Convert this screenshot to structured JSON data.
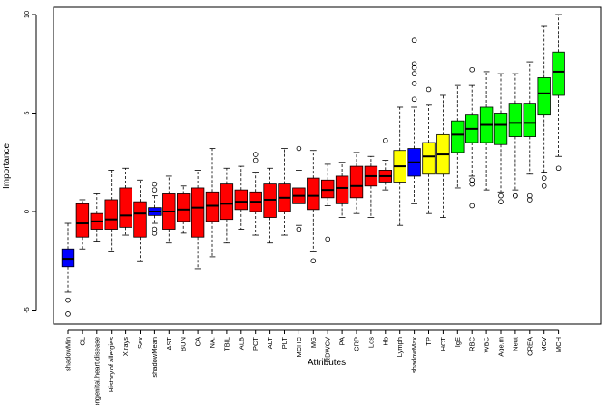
{
  "chart_data": {
    "type": "boxplot",
    "xlabel": "Attributes",
    "ylabel": "Importance",
    "ylim": [
      -5.5,
      10.3
    ],
    "yticks": [
      -5,
      0,
      5,
      10
    ],
    "colors": {
      "shadow": "#0000ff",
      "rejected": "#ff0000",
      "tentative": "#ffff00",
      "confirmed": "#00ff00"
    },
    "boxes": [
      {
        "name": "shadowMin",
        "status": "shadow",
        "whisker_low": -4.1,
        "q1": -2.8,
        "median": -2.4,
        "q3": -1.9,
        "whisker_high": -0.6,
        "outliers": [
          -4.5,
          -5.2
        ]
      },
      {
        "name": "CL",
        "status": "rejected",
        "whisker_low": -1.9,
        "q1": -1.3,
        "median": -0.6,
        "q3": 0.4,
        "whisker_high": 0.6,
        "outliers": []
      },
      {
        "name": "Congenital.heart.disease",
        "status": "rejected",
        "whisker_low": -1.5,
        "q1": -0.9,
        "median": -0.5,
        "q3": -0.1,
        "whisker_high": 0.9,
        "outliers": []
      },
      {
        "name": "History.of.allergies",
        "status": "rejected",
        "whisker_low": -2.0,
        "q1": -0.9,
        "median": -0.4,
        "q3": 0.6,
        "whisker_high": 2.1,
        "outliers": []
      },
      {
        "name": "X.rays",
        "status": "rejected",
        "whisker_low": -1.2,
        "q1": -0.8,
        "median": -0.2,
        "q3": 1.2,
        "whisker_high": 2.2,
        "outliers": []
      },
      {
        "name": "Sex",
        "status": "rejected",
        "whisker_low": -2.5,
        "q1": -1.3,
        "median": -0.1,
        "q3": 0.5,
        "whisker_high": 1.6,
        "outliers": []
      },
      {
        "name": "shadowMean",
        "status": "shadow",
        "whisker_low": -0.6,
        "q1": -0.2,
        "median": 0.0,
        "q3": 0.2,
        "whisker_high": 0.8,
        "outliers": [
          1.4,
          1.1,
          -0.9,
          -1.1
        ]
      },
      {
        "name": "AST",
        "status": "rejected",
        "whisker_low": -1.6,
        "q1": -0.9,
        "median": 0.0,
        "q3": 0.9,
        "whisker_high": 1.8,
        "outliers": []
      },
      {
        "name": "BUN",
        "status": "rejected",
        "whisker_low": -1.1,
        "q1": -0.5,
        "median": 0.1,
        "q3": 0.9,
        "whisker_high": 1.3,
        "outliers": []
      },
      {
        "name": "CA",
        "status": "rejected",
        "whisker_low": -2.9,
        "q1": -1.3,
        "median": 0.2,
        "q3": 1.2,
        "whisker_high": 2.1,
        "outliers": []
      },
      {
        "name": "NA.",
        "status": "rejected",
        "whisker_low": -2.3,
        "q1": -0.5,
        "median": 0.3,
        "q3": 1.0,
        "whisker_high": 3.2,
        "outliers": []
      },
      {
        "name": "TBIL",
        "status": "rejected",
        "whisker_low": -1.6,
        "q1": -0.4,
        "median": 0.4,
        "q3": 1.4,
        "whisker_high": 2.2,
        "outliers": []
      },
      {
        "name": "ALB",
        "status": "rejected",
        "whisker_low": -0.9,
        "q1": 0.1,
        "median": 0.5,
        "q3": 1.1,
        "whisker_high": 2.3,
        "outliers": []
      },
      {
        "name": "PCT",
        "status": "rejected",
        "whisker_low": -1.2,
        "q1": 0.0,
        "median": 0.5,
        "q3": 1.0,
        "whisker_high": 2.0,
        "outliers": [
          2.9,
          2.6
        ]
      },
      {
        "name": "ALT",
        "status": "rejected",
        "whisker_low": -1.6,
        "q1": -0.3,
        "median": 0.6,
        "q3": 1.4,
        "whisker_high": 2.2,
        "outliers": []
      },
      {
        "name": "PLT",
        "status": "rejected",
        "whisker_low": -1.2,
        "q1": 0.0,
        "median": 0.7,
        "q3": 1.4,
        "whisker_high": 3.2,
        "outliers": []
      },
      {
        "name": "MCHC",
        "status": "rejected",
        "whisker_low": -0.7,
        "q1": 0.4,
        "median": 0.8,
        "q3": 1.2,
        "whisker_high": 2.1,
        "outliers": [
          3.2,
          -0.9
        ]
      },
      {
        "name": "MG",
        "status": "rejected",
        "whisker_low": -2.0,
        "q1": 0.1,
        "median": 0.8,
        "q3": 1.7,
        "whisker_high": 3.1,
        "outliers": [
          -2.5
        ]
      },
      {
        "name": "RDWCV",
        "status": "rejected",
        "whisker_low": 0.3,
        "q1": 0.7,
        "median": 1.1,
        "q3": 1.6,
        "whisker_high": 2.4,
        "outliers": [
          -1.4
        ]
      },
      {
        "name": "PA",
        "status": "rejected",
        "whisker_low": -0.3,
        "q1": 0.4,
        "median": 1.2,
        "q3": 1.8,
        "whisker_high": 2.5,
        "outliers": []
      },
      {
        "name": "CRP",
        "status": "rejected",
        "whisker_low": -0.1,
        "q1": 0.7,
        "median": 1.3,
        "q3": 2.3,
        "whisker_high": 3.0,
        "outliers": []
      },
      {
        "name": "Los",
        "status": "rejected",
        "whisker_low": -0.3,
        "q1": 1.3,
        "median": 1.8,
        "q3": 2.3,
        "whisker_high": 2.8,
        "outliers": []
      },
      {
        "name": "Hb",
        "status": "rejected",
        "whisker_low": 1.1,
        "q1": 1.5,
        "median": 1.8,
        "q3": 2.1,
        "whisker_high": 2.6,
        "outliers": [
          3.6
        ]
      },
      {
        "name": "Lymph",
        "status": "tentative",
        "whisker_low": -0.7,
        "q1": 1.5,
        "median": 2.3,
        "q3": 3.1,
        "whisker_high": 5.3,
        "outliers": []
      },
      {
        "name": "shadowMax",
        "status": "shadow",
        "whisker_low": 0.4,
        "q1": 1.8,
        "median": 2.5,
        "q3": 3.2,
        "whisker_high": 5.3,
        "outliers": [
          8.7,
          7.5,
          7.3,
          7.0,
          6.5,
          5.7
        ]
      },
      {
        "name": "TP",
        "status": "tentative",
        "whisker_low": -0.1,
        "q1": 1.9,
        "median": 2.8,
        "q3": 3.5,
        "whisker_high": 5.4,
        "outliers": [
          6.2
        ]
      },
      {
        "name": "HCT",
        "status": "tentative",
        "whisker_low": -0.3,
        "q1": 1.9,
        "median": 2.9,
        "q3": 3.9,
        "whisker_high": 5.9,
        "outliers": []
      },
      {
        "name": "IgE",
        "status": "confirmed",
        "whisker_low": 1.2,
        "q1": 3.0,
        "median": 3.9,
        "q3": 4.6,
        "whisker_high": 6.4,
        "outliers": []
      },
      {
        "name": "RBC",
        "status": "confirmed",
        "whisker_low": 1.8,
        "q1": 3.5,
        "median": 4.2,
        "q3": 4.9,
        "whisker_high": 6.4,
        "outliers": [
          7.2,
          1.6,
          1.4,
          0.3
        ]
      },
      {
        "name": "WBC",
        "status": "confirmed",
        "whisker_low": 1.1,
        "q1": 3.5,
        "median": 4.4,
        "q3": 5.3,
        "whisker_high": 7.1,
        "outliers": []
      },
      {
        "name": "Age.m",
        "status": "confirmed",
        "whisker_low": 1.0,
        "q1": 3.4,
        "median": 4.4,
        "q3": 5.0,
        "whisker_high": 7.0,
        "outliers": [
          0.8,
          0.5
        ]
      },
      {
        "name": "Neut",
        "status": "confirmed",
        "whisker_low": 1.1,
        "q1": 3.8,
        "median": 4.5,
        "q3": 5.5,
        "whisker_high": 7.0,
        "outliers": [
          0.8,
          0.8
        ]
      },
      {
        "name": "CREA",
        "status": "confirmed",
        "whisker_low": 1.9,
        "q1": 3.8,
        "median": 4.5,
        "q3": 5.5,
        "whisker_high": 7.6,
        "outliers": [
          0.8,
          0.6
        ]
      },
      {
        "name": "MCV",
        "status": "confirmed",
        "whisker_low": 2.0,
        "q1": 4.9,
        "median": 6.0,
        "q3": 6.8,
        "whisker_high": 9.4,
        "outliers": [
          1.7,
          1.3
        ]
      },
      {
        "name": "MCH",
        "status": "confirmed",
        "whisker_low": 2.8,
        "q1": 5.9,
        "median": 7.1,
        "q3": 8.1,
        "whisker_high": 10.0,
        "outliers": [
          2.2
        ]
      }
    ]
  }
}
